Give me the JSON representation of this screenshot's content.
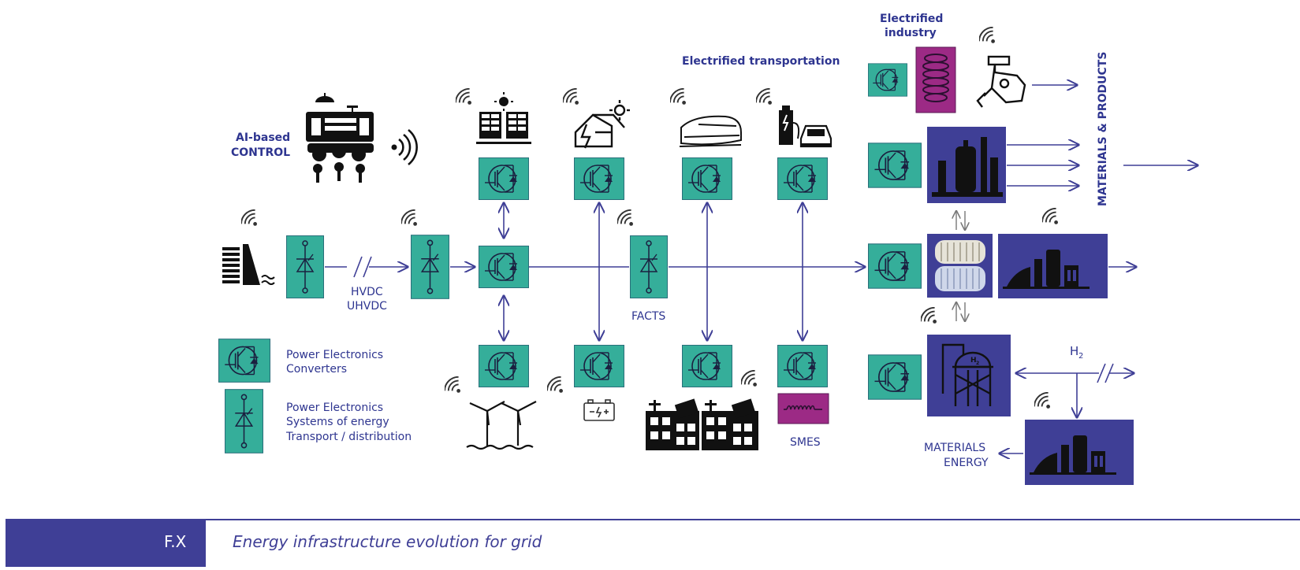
{
  "labels": {
    "ai_control_1": "AI-based",
    "ai_control_2": "CONTROL",
    "hvdc_1": "HVDC",
    "hvdc_2": "UHVDC",
    "facts": "FACTS",
    "smes": "SMES",
    "electrified_transportation": "Electrified transportation",
    "electrified_industry_1": "Electrified",
    "electrified_industry_2": "industry",
    "materials_products": "MATERIALS & PRODUCTS",
    "h2": "H",
    "h2_sub": "2",
    "materials_energy_1": "MATERIALS",
    "materials_energy_2": "ENERGY"
  },
  "legend": {
    "converters_1": "Power Electronics",
    "converters_2": "Converters",
    "systems_1": "Power Electronics",
    "systems_2": "Systems of energy",
    "systems_3": "Transport / distribution"
  },
  "footer": {
    "code": "F.X",
    "title": "Energy infrastructure evolution for grid"
  },
  "colors": {
    "teal": "#35ae9a",
    "navy": "#3f3f96",
    "magenta": "#9c2a85",
    "line": "#3f3f96",
    "text": "#2e3590"
  }
}
